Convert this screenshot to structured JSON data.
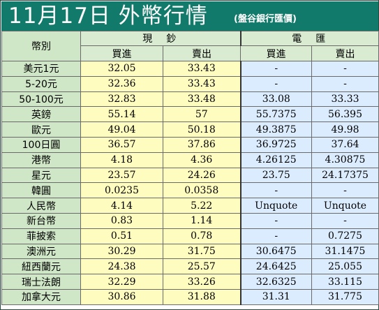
{
  "header": {
    "title": "11月17日 外幣行情",
    "source": "(盤谷銀行匯價)"
  },
  "table": {
    "corner_label": "幣別",
    "groups": [
      {
        "label": "現　鈔"
      },
      {
        "label": "電　匯"
      }
    ],
    "subheaders": [
      "買進",
      "賣出",
      "買進",
      "賣出"
    ],
    "rows": [
      {
        "currency": "美元1元",
        "values": [
          "32.05",
          "33.43",
          "-",
          "-"
        ]
      },
      {
        "currency": "5-20元",
        "values": [
          "32.36",
          "33.43",
          "-",
          "-"
        ]
      },
      {
        "currency": "50-100元",
        "values": [
          "32.83",
          "33.48",
          "33.08",
          "33.33"
        ]
      },
      {
        "currency": "英鎊",
        "values": [
          "55.14",
          "57",
          "55.7375",
          "56.395"
        ]
      },
      {
        "currency": "歐元",
        "values": [
          "49.04",
          "50.18",
          "49.3875",
          "49.98"
        ]
      },
      {
        "currency": "100日圓",
        "values": [
          "36.57",
          "37.86",
          "36.9725",
          "37.64"
        ]
      },
      {
        "currency": "港幣",
        "values": [
          "4.18",
          "4.36",
          "4.26125",
          "4.30875"
        ]
      },
      {
        "currency": "星元",
        "values": [
          "23.57",
          "24.26",
          "23.75",
          "24.17375"
        ]
      },
      {
        "currency": "韓圓",
        "values": [
          "0.0235",
          "0.0358",
          "-",
          "-"
        ]
      },
      {
        "currency": "人民幣",
        "values": [
          "4.14",
          "5.22",
          "Unquote",
          "Unquote"
        ]
      },
      {
        "currency": "新台幣",
        "values": [
          "0.83",
          "1.14",
          "-",
          "-"
        ]
      },
      {
        "currency": "菲披索",
        "values": [
          "0.51",
          "0.78",
          "-",
          "0.7275"
        ]
      },
      {
        "currency": "澳洲元",
        "values": [
          "30.29",
          "31.75",
          "30.6475",
          "31.1475"
        ]
      },
      {
        "currency": "紐西蘭元",
        "values": [
          "24.38",
          "25.57",
          "24.6425",
          "25.055"
        ]
      },
      {
        "currency": "瑞士法朗",
        "values": [
          "32.29",
          "33.26",
          "32.6325",
          "33.115"
        ]
      },
      {
        "currency": "加拿大元",
        "values": [
          "30.86",
          "31.88",
          "31.31",
          "31.775"
        ]
      }
    ]
  },
  "colors": {
    "title_bg": "#127a6a",
    "header_bg": "#d9ecd2",
    "name_bg": "#cfe7c6",
    "cash_bg": "#fffcc0",
    "wire_bg": "#dcecff"
  }
}
